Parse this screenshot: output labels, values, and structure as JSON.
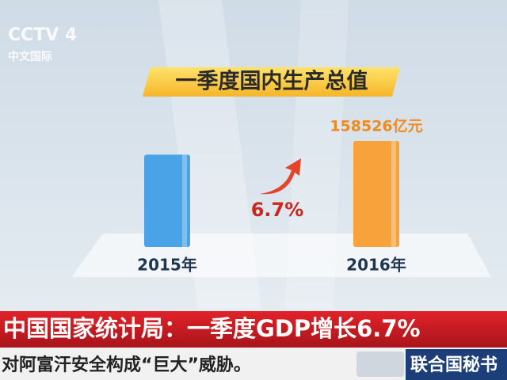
{
  "logo": {
    "name": "CCTV 4",
    "subtitle": "中文国际"
  },
  "chart_data": {
    "type": "bar",
    "title": "一季度国内生产总值",
    "categories": [
      "2015年",
      "2016年"
    ],
    "values": [
      138000,
      158526
    ],
    "value_labels": [
      null,
      "158526亿元"
    ],
    "colors": [
      "#4aa3e6",
      "#f7a23a"
    ],
    "annotation": "6.7%"
  },
  "banner": "中国国家统计局：一季度GDP增长6.7%",
  "ticker": {
    "text": "对阿富汗安全构成“巨大”威胁。",
    "next": "联合国秘书"
  }
}
